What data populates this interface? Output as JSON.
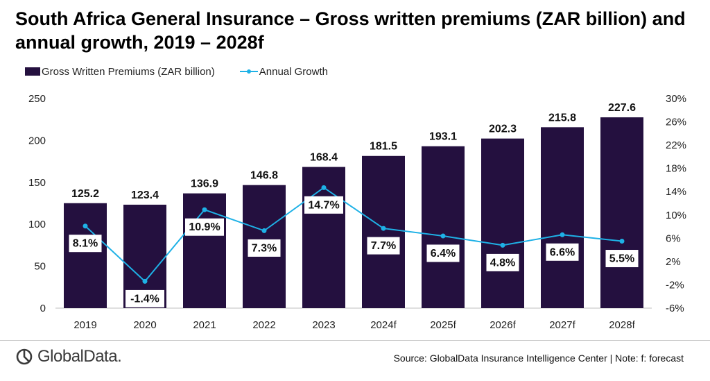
{
  "title": "South Africa General Insurance – Gross written premiums (ZAR billion) and annual growth, 2019 – 2028f",
  "legend": {
    "bar_label": "Gross Written Premiums (ZAR billion)",
    "line_label": "Annual Growth"
  },
  "logo": {
    "text": "GlobalData.",
    "icon": "globaldata-logo-icon"
  },
  "source": "Source: GlobalData Insurance Intelligence Center | Note: f: forecast",
  "colors": {
    "bar": "#24103f",
    "line": "#1eb1e6"
  },
  "chart_data": {
    "type": "bar",
    "categories": [
      "2019",
      "2020",
      "2021",
      "2022",
      "2023",
      "2024f",
      "2025f",
      "2026f",
      "2027f",
      "2028f"
    ],
    "series": [
      {
        "name": "Gross Written Premiums (ZAR billion)",
        "type": "bar",
        "axis": "left",
        "values": [
          125.2,
          123.4,
          136.9,
          146.8,
          168.4,
          181.5,
          193.1,
          202.3,
          215.8,
          227.6
        ],
        "labels": [
          "125.2",
          "123.4",
          "136.9",
          "146.8",
          "168.4",
          "181.5",
          "193.1",
          "202.3",
          "215.8",
          "227.6"
        ]
      },
      {
        "name": "Annual Growth",
        "type": "line",
        "axis": "right",
        "values": [
          8.1,
          -1.4,
          10.9,
          7.3,
          14.7,
          7.7,
          6.4,
          4.8,
          6.6,
          5.5
        ],
        "labels": [
          "8.1%",
          "-1.4%",
          "10.9%",
          "7.3%",
          "14.7%",
          "7.7%",
          "6.4%",
          "4.8%",
          "6.6%",
          "5.5%"
        ]
      }
    ],
    "ylim": [
      0,
      250
    ],
    "yticks": [
      "0",
      "50",
      "100",
      "150",
      "200",
      "250"
    ],
    "y2lim": [
      -6,
      30
    ],
    "y2ticks": [
      "-6%",
      "-2%",
      "2%",
      "6%",
      "10%",
      "14%",
      "18%",
      "22%",
      "26%",
      "30%"
    ],
    "grid": false,
    "legend_position": "top-left"
  }
}
